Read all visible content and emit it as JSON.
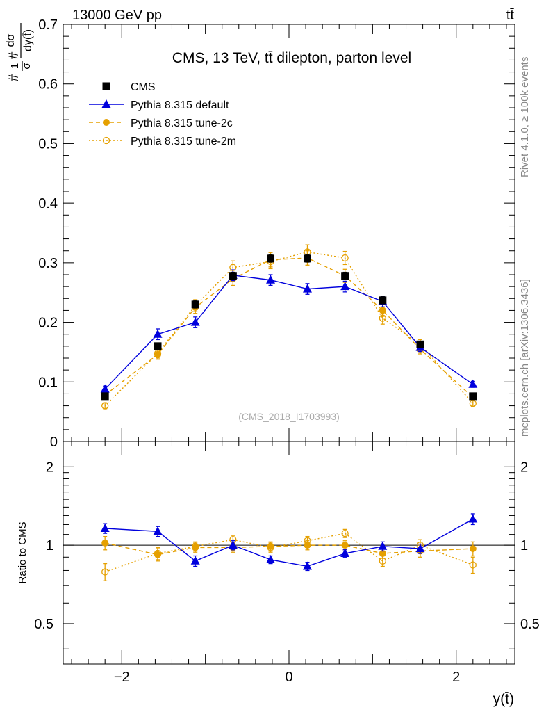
{
  "header": {
    "energy_label": "13000 GeV pp",
    "process_label": "tt̄",
    "side_label_top": "Rivet 4.1.0, ≥ 100k events",
    "side_label_bottom": "mcplots.cern.ch [arXiv:1306.3436]"
  },
  "chart_data": [
    {
      "type": "line",
      "title": "CMS, 13 TeV, tt̄ dilepton, parton level",
      "watermark": "(CMS_2018_I1703993)",
      "ylabel": "#1/σ# dσ/dy(t̄)",
      "ylabel_parts": {
        "frac_num": "1",
        "frac_den": "σ",
        "hash": "#",
        "deriv_num": "dσ",
        "deriv_den": "dy(t̄)"
      },
      "xlabel": "y(t̄)",
      "xlim": [
        -2.7,
        2.7
      ],
      "ylim": [
        0,
        0.7
      ],
      "yticks": [
        0,
        0.1,
        0.2,
        0.3,
        0.4,
        0.5,
        0.6,
        0.7
      ],
      "ytick_labels": [
        "0",
        "0.1",
        "0.2",
        "0.3",
        "0.4",
        "0.5",
        "0.6",
        "0.7"
      ],
      "x": [
        -2.2,
        -1.57,
        -1.12,
        -0.67,
        -0.22,
        0.22,
        0.67,
        1.12,
        1.57,
        2.2
      ],
      "legend_position": "top-left",
      "series": [
        {
          "name": "CMS",
          "color": "#000000",
          "marker": "square",
          "line": "none",
          "values": [
            0.076,
            0.16,
            0.23,
            0.278,
            0.307,
            0.307,
            0.278,
            0.237,
            0.163,
            0.076
          ],
          "errors": [
            0.004,
            0.005,
            0.006,
            0.006,
            0.006,
            0.006,
            0.006,
            0.006,
            0.005,
            0.004
          ]
        },
        {
          "name": "Pythia 8.315 default",
          "color": "#0000dd",
          "marker": "triangle",
          "line": "solid",
          "values": [
            0.088,
            0.18,
            0.2,
            0.279,
            0.271,
            0.256,
            0.26,
            0.235,
            0.158,
            0.096
          ],
          "errors": [
            0.005,
            0.009,
            0.009,
            0.009,
            0.009,
            0.009,
            0.009,
            0.009,
            0.007,
            0.005
          ]
        },
        {
          "name": "Pythia 8.315 tune-2c",
          "color": "#e5a000",
          "marker": "circle",
          "line": "dashed",
          "values": [
            0.078,
            0.146,
            0.225,
            0.273,
            0.305,
            0.308,
            0.278,
            0.22,
            0.155,
            0.074
          ],
          "errors": [
            0.005,
            0.008,
            0.01,
            0.011,
            0.012,
            0.012,
            0.011,
            0.01,
            0.008,
            0.005
          ]
        },
        {
          "name": "Pythia 8.315 tune-2m",
          "color": "#e5a000",
          "marker": "open-circle",
          "line": "dotted",
          "values": [
            0.06,
            0.148,
            0.228,
            0.292,
            0.302,
            0.318,
            0.308,
            0.207,
            0.163,
            0.064
          ],
          "errors": [
            0.005,
            0.008,
            0.01,
            0.011,
            0.012,
            0.012,
            0.011,
            0.01,
            0.008,
            0.005
          ]
        }
      ]
    },
    {
      "type": "line",
      "title": "",
      "ylabel": "Ratio to CMS",
      "xlabel": "y(t̄)",
      "xlim": [
        -2.7,
        2.7
      ],
      "xticks": [
        -2,
        0,
        2
      ],
      "xtick_labels": [
        "−2",
        "0",
        "2"
      ],
      "ylim": [
        0.35,
        2.5
      ],
      "yscale": "log",
      "yticks": [
        0.5,
        1,
        2
      ],
      "ytick_labels": [
        "0.5",
        "1",
        "2"
      ],
      "x": [
        -2.2,
        -1.57,
        -1.12,
        -0.67,
        -0.22,
        0.22,
        0.67,
        1.12,
        1.57,
        2.2
      ],
      "series": [
        {
          "name": "Pythia 8.315 default",
          "color": "#0000dd",
          "marker": "triangle",
          "line": "solid",
          "values": [
            1.16,
            1.13,
            0.87,
            1.0,
            0.88,
            0.83,
            0.93,
            0.99,
            0.97,
            1.26
          ],
          "errors": [
            0.05,
            0.05,
            0.04,
            0.04,
            0.03,
            0.03,
            0.03,
            0.04,
            0.04,
            0.06
          ]
        },
        {
          "name": "Pythia 8.315 tune-2c",
          "color": "#e5a000",
          "marker": "circle",
          "line": "dashed",
          "values": [
            1.02,
            0.92,
            0.98,
            0.98,
            0.99,
            1.0,
            1.0,
            0.93,
            0.95,
            0.97
          ],
          "errors": [
            0.06,
            0.05,
            0.04,
            0.04,
            0.04,
            0.04,
            0.04,
            0.04,
            0.05,
            0.06
          ]
        },
        {
          "name": "Pythia 8.315 tune-2m",
          "color": "#e5a000",
          "marker": "open-circle",
          "line": "dotted",
          "values": [
            0.79,
            0.93,
            0.99,
            1.05,
            0.98,
            1.04,
            1.11,
            0.87,
            1.0,
            0.84
          ],
          "errors": [
            0.06,
            0.05,
            0.04,
            0.04,
            0.04,
            0.04,
            0.04,
            0.04,
            0.05,
            0.06
          ]
        }
      ]
    }
  ]
}
